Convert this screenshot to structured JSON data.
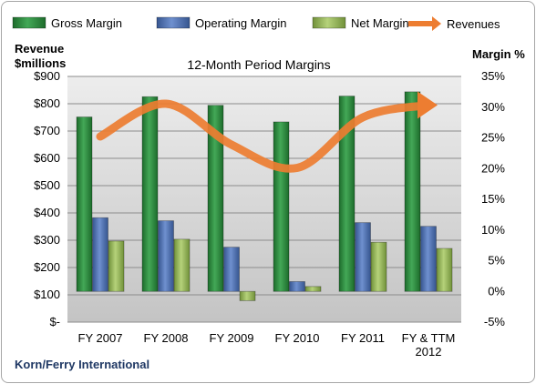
{
  "company": "Korn/Ferry International",
  "chart_data": {
    "type": "bar",
    "title": "12-Month Period Margins",
    "left_axis_label": [
      "Revenue",
      "$millions"
    ],
    "right_axis_label": "Margin %",
    "categories": [
      [
        "FY 2007"
      ],
      [
        "FY 2008"
      ],
      [
        "FY 2009"
      ],
      [
        "FY 2010"
      ],
      [
        "FY 2011"
      ],
      [
        "FY & TTM",
        "2012"
      ]
    ],
    "left_ticks": [
      "$-",
      "$100",
      "$200",
      "$300",
      "$400",
      "$500",
      "$600",
      "$700",
      "$800",
      "$900"
    ],
    "right_ticks": [
      "-5%",
      "0%",
      "5%",
      "10%",
      "15%",
      "20%",
      "25%",
      "30%",
      "35%"
    ],
    "ylim_left": [
      0,
      900
    ],
    "ylim_right": [
      -5,
      35
    ],
    "series": [
      {
        "name": "Gross Margin",
        "color": "#2e8b3e",
        "axis": "right",
        "values": [
          28.4,
          31.7,
          30.3,
          27.6,
          31.8,
          32.5
        ]
      },
      {
        "name": "Operating Margin",
        "color": "#4f72b8",
        "axis": "right",
        "values": [
          12.0,
          11.5,
          7.2,
          1.6,
          11.2,
          10.6
        ]
      },
      {
        "name": "Net Margin",
        "color": "#9bbb59",
        "axis": "right",
        "values": [
          8.2,
          8.5,
          -1.5,
          0.8,
          8.0,
          7.0
        ]
      },
      {
        "name": "Revenues",
        "color": "#ed7d31",
        "axis": "left",
        "type": "line",
        "values": [
          680,
          800,
          650,
          565,
          750,
          795
        ]
      }
    ],
    "grid": true,
    "legend_position": "top"
  }
}
